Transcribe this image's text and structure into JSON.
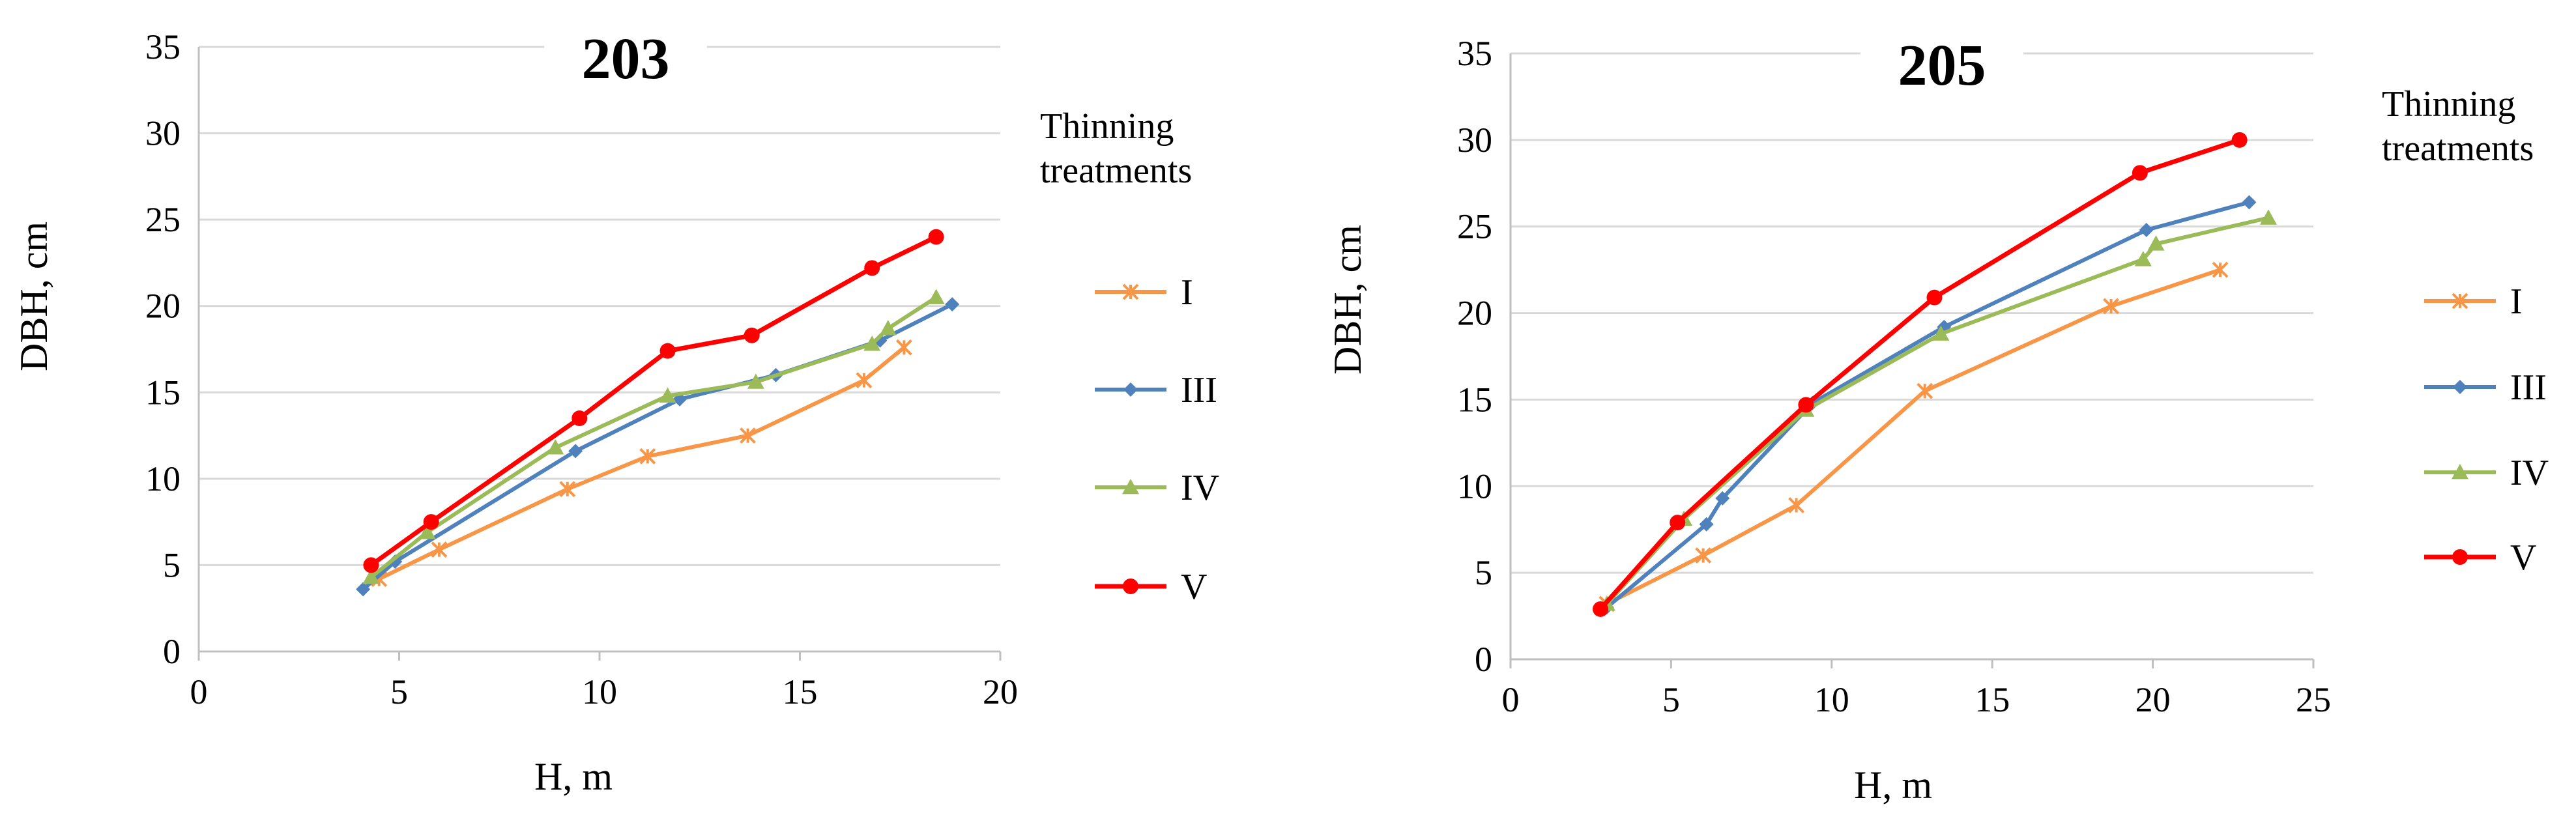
{
  "chart_data": [
    {
      "type": "line",
      "title": "203",
      "xlabel": "H, m",
      "ylabel": "DBH, cm",
      "xlim": [
        0,
        20
      ],
      "ylim": [
        0,
        35
      ],
      "xticks": [
        0,
        5,
        10,
        15,
        20
      ],
      "yticks": [
        0,
        5,
        10,
        15,
        20,
        25,
        30,
        35
      ],
      "legend_title": "Thinning treatments",
      "series": [
        {
          "name": "I",
          "color": "#f79646",
          "marker": "star",
          "x": [
            4.5,
            6.0,
            9.2,
            11.2,
            13.7,
            16.6,
            17.6
          ],
          "y": [
            4.2,
            5.9,
            9.4,
            11.3,
            12.5,
            15.7,
            17.6
          ]
        },
        {
          "name": "III",
          "color": "#4f81bd",
          "marker": "diamond",
          "x": [
            4.1,
            4.9,
            9.4,
            12.0,
            14.4,
            17.0,
            18.8
          ],
          "y": [
            3.6,
            5.2,
            11.6,
            14.6,
            16.0,
            18.0,
            20.1
          ]
        },
        {
          "name": "IV",
          "color": "#9bbb59",
          "marker": "triangle",
          "x": [
            4.3,
            5.7,
            8.9,
            11.7,
            13.9,
            16.8,
            17.2,
            18.4
          ],
          "y": [
            4.3,
            6.9,
            11.8,
            14.8,
            15.6,
            17.8,
            18.7,
            20.5
          ]
        },
        {
          "name": "V",
          "color": "#ff0000",
          "marker": "circle",
          "x": [
            4.3,
            5.8,
            9.5,
            11.7,
            13.8,
            16.8,
            18.4
          ],
          "y": [
            5.0,
            7.5,
            13.5,
            17.4,
            18.3,
            22.2,
            24.0
          ]
        }
      ]
    },
    {
      "type": "line",
      "title": "205",
      "xlabel": "H, m",
      "ylabel": "DBH, cm",
      "xlim": [
        0,
        25
      ],
      "ylim": [
        0,
        35
      ],
      "xticks": [
        0,
        5,
        10,
        15,
        20,
        25
      ],
      "yticks": [
        0,
        5,
        10,
        15,
        20,
        25,
        30,
        35
      ],
      "legend_title": "Thinning treatments",
      "series": [
        {
          "name": "I",
          "color": "#f79646",
          "marker": "star",
          "x": [
            3.0,
            6.0,
            8.9,
            12.9,
            18.7,
            22.1
          ],
          "y": [
            3.2,
            6.0,
            8.9,
            15.5,
            20.4,
            22.5
          ]
        },
        {
          "name": "III",
          "color": "#4f81bd",
          "marker": "diamond",
          "x": [
            3.0,
            6.1,
            6.6,
            9.4,
            13.5,
            19.8,
            23.0
          ],
          "y": [
            3.0,
            7.8,
            9.3,
            14.8,
            19.2,
            24.8,
            26.4
          ]
        },
        {
          "name": "IV",
          "color": "#9bbb59",
          "marker": "triangle",
          "x": [
            3.0,
            5.4,
            9.2,
            13.4,
            19.7,
            20.1,
            23.6
          ],
          "y": [
            3.2,
            8.1,
            14.4,
            18.8,
            23.1,
            24.0,
            25.5
          ]
        },
        {
          "name": "V",
          "color": "#ff0000",
          "marker": "circle",
          "x": [
            2.8,
            5.2,
            9.2,
            13.2,
            19.6,
            22.7
          ],
          "y": [
            2.9,
            7.9,
            14.7,
            20.9,
            28.1,
            30.0
          ]
        }
      ]
    }
  ]
}
